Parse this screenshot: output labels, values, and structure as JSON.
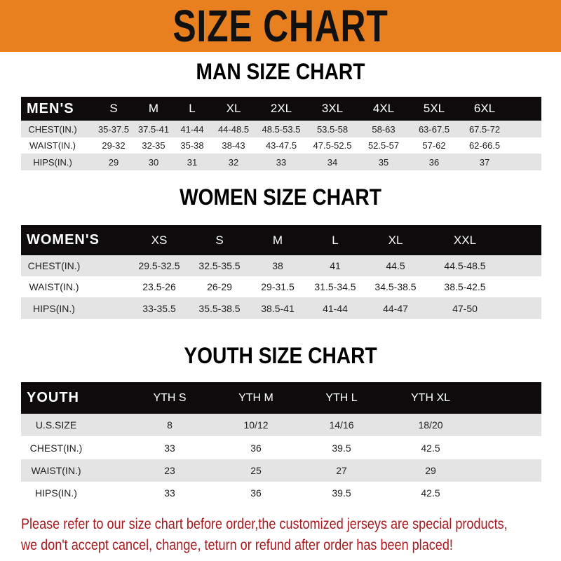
{
  "banner": {
    "title": "SIZE CHART",
    "color": "#e8801f"
  },
  "tables": [
    {
      "title": "MAN SIZE CHART",
      "header_label": "MEN'S",
      "columns": [
        "S",
        "M",
        "L",
        "XL",
        "2XL",
        "3XL",
        "4XL",
        "5XL",
        "6XL"
      ],
      "rows": [
        {
          "label": "CHEST(IN.)",
          "values": [
            "35-37.5",
            "37.5-41",
            "41-44",
            "44-48.5",
            "48.5-53.5",
            "53.5-58",
            "58-63",
            "63-67.5",
            "67.5-72"
          ]
        },
        {
          "label": "WAIST(IN.)",
          "values": [
            "29-32",
            "32-35",
            "35-38",
            "38-43",
            "43-47.5",
            "47.5-52.5",
            "52.5-57",
            "57-62",
            "62-66.5"
          ]
        },
        {
          "label": "HIPS(IN.)",
          "values": [
            "29",
            "30",
            "31",
            "32",
            "33",
            "34",
            "35",
            "36",
            "37"
          ]
        }
      ]
    },
    {
      "title": "WOMEN SIZE CHART",
      "header_label": "WOMEN'S",
      "columns": [
        "XS",
        "S",
        "M",
        "L",
        "XL",
        "XXL"
      ],
      "rows": [
        {
          "label": "CHEST(IN.)",
          "values": [
            "29.5-32.5",
            "32.5-35.5",
            "38",
            "41",
            "44.5",
            "44.5-48.5"
          ]
        },
        {
          "label": "WAIST(IN.)",
          "values": [
            "23.5-26",
            "26-29",
            "29-31.5",
            "31.5-34.5",
            "34.5-38.5",
            "38.5-42.5"
          ]
        },
        {
          "label": "HIPS(IN.)",
          "values": [
            "33-35.5",
            "35.5-38.5",
            "38.5-41",
            "41-44",
            "44-47",
            "47-50"
          ]
        }
      ]
    },
    {
      "title": "YOUTH SIZE CHART",
      "header_label": "YOUTH",
      "columns": [
        "YTH S",
        "YTH M",
        "YTH L",
        "YTH XL"
      ],
      "rows": [
        {
          "label": "U.S.SIZE",
          "values": [
            "8",
            "10/12",
            "14/16",
            "18/20"
          ]
        },
        {
          "label": "CHEST(IN.)",
          "values": [
            "33",
            "36",
            "39.5",
            "42.5"
          ]
        },
        {
          "label": "WAIST(IN.)",
          "values": [
            "23",
            "25",
            "27",
            "29"
          ]
        },
        {
          "label": "HIPS(IN.)",
          "values": [
            "33",
            "36",
            "39.5",
            "42.5"
          ]
        }
      ]
    }
  ],
  "notice": {
    "line1": "Please refer to our size chart before order,the customized jerseys are special products,",
    "line2": "we don't accept cancel, change, teturn or refund after order has been placed!",
    "color": "#a8181c"
  }
}
